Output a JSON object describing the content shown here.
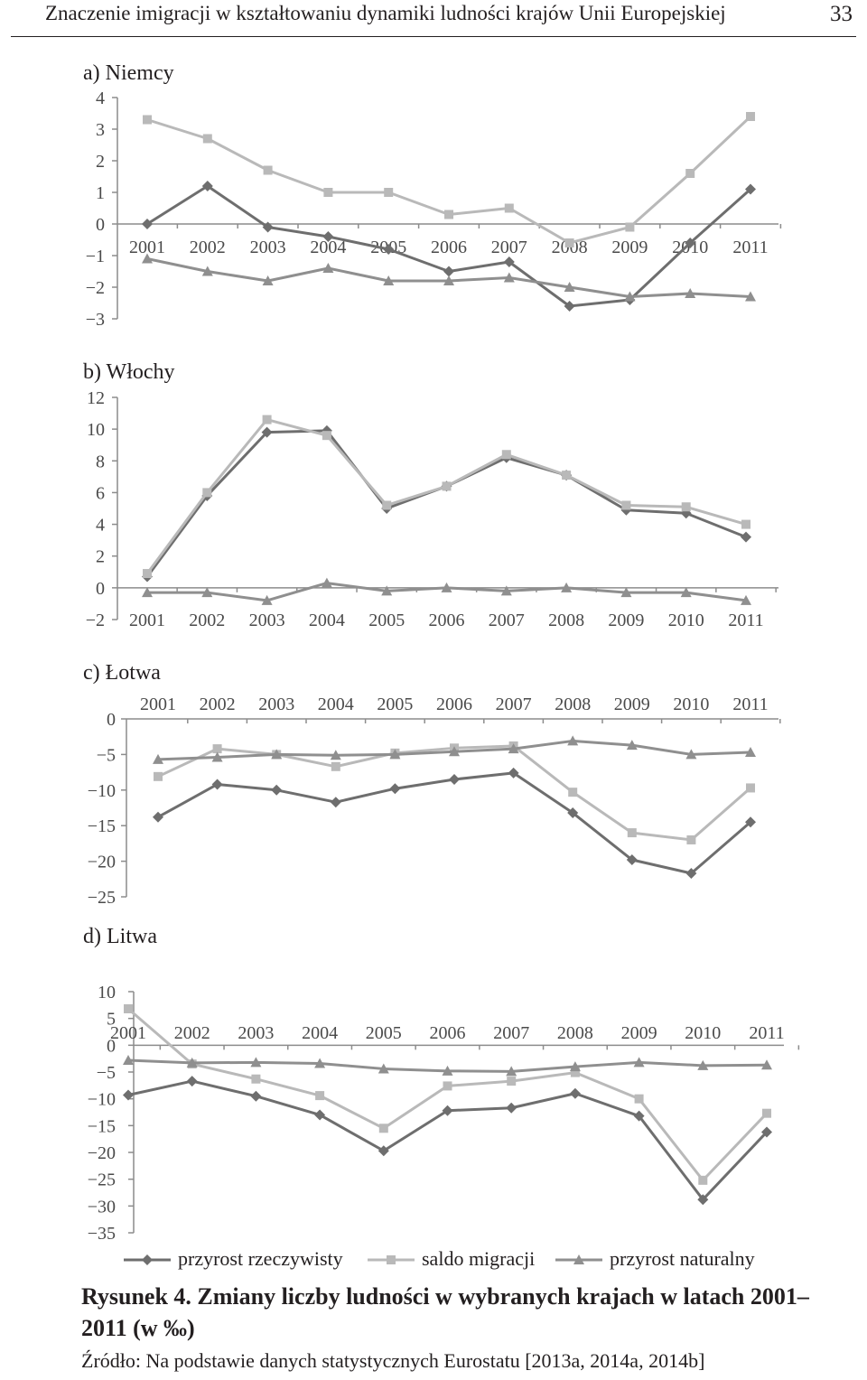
{
  "header": {
    "title": "Znaczenie imigracji w kształtowaniu dynamiki ludności krajów Unii Europejskiej",
    "page_number": "33"
  },
  "colors": {
    "przyrost_rzeczywisty": "#6e6e6e",
    "saldo_migracji": "#b9b9b9",
    "przyrost_naturalny": "#8f8f8f"
  },
  "legend": [
    {
      "name": "przyrost rzeczywisty",
      "marker": "diamond"
    },
    {
      "name": "saldo migracji",
      "marker": "square"
    },
    {
      "name": "przyrost naturalny",
      "marker": "triangle"
    }
  ],
  "caption": "Rysunek 4. Zmiany liczby ludności w wybranych krajach w latach 2001–2011 (w ‰)",
  "source": "Źródło: Na podstawie danych statystycznych Eurostatu [2013a, 2014a, 2014b]",
  "chart_data": [
    {
      "type": "line",
      "title": "a) Niemcy",
      "categories": [
        "2001",
        "2002",
        "2003",
        "2004",
        "2005",
        "2006",
        "2007",
        "2008",
        "2009",
        "2010",
        "2011"
      ],
      "ylim": [
        -3,
        4
      ],
      "yticks": [
        4,
        3,
        2,
        1,
        0,
        -1,
        -2,
        -3
      ],
      "ytick_labels": [
        "4",
        "3",
        "2",
        "1",
        "0",
        "−1",
        "−2",
        "−3"
      ],
      "series": [
        {
          "name": "przyrost rzeczywisty",
          "values": [
            0.0,
            1.2,
            -0.1,
            -0.4,
            -0.8,
            -1.5,
            -1.2,
            -2.6,
            -2.4,
            -0.6,
            1.1
          ]
        },
        {
          "name": "saldo migracji",
          "values": [
            3.3,
            2.7,
            1.7,
            1.0,
            1.0,
            0.3,
            0.5,
            -0.6,
            -0.1,
            1.6,
            3.4
          ]
        },
        {
          "name": "przyrost naturalny",
          "values": [
            -1.1,
            -1.5,
            -1.8,
            -1.4,
            -1.8,
            -1.8,
            -1.7,
            -2.0,
            -2.3,
            -2.2,
            -2.3
          ]
        }
      ]
    },
    {
      "type": "line",
      "title": "b) Włochy",
      "categories": [
        "2001",
        "2002",
        "2003",
        "2004",
        "2005",
        "2006",
        "2007",
        "2008",
        "2009",
        "2010",
        "2011"
      ],
      "ylim": [
        -2,
        12
      ],
      "yticks": [
        12,
        10,
        8,
        6,
        4,
        2,
        0,
        -2
      ],
      "ytick_labels": [
        "12",
        "10",
        "8",
        "6",
        "4",
        "2",
        "0",
        "−2"
      ],
      "series": [
        {
          "name": "przyrost rzeczywisty",
          "values": [
            0.7,
            5.8,
            9.8,
            9.9,
            5.0,
            6.4,
            8.2,
            7.1,
            4.9,
            4.7,
            3.2
          ]
        },
        {
          "name": "saldo migracji",
          "values": [
            0.9,
            6.0,
            10.6,
            9.6,
            5.2,
            6.4,
            8.4,
            7.1,
            5.2,
            5.1,
            4.0
          ]
        },
        {
          "name": "przyrost naturalny",
          "values": [
            -0.3,
            -0.3,
            -0.8,
            0.3,
            -0.2,
            0.0,
            -0.2,
            0.0,
            -0.3,
            -0.3,
            -0.8
          ]
        }
      ]
    },
    {
      "type": "line",
      "title": "c) Łotwa",
      "categories": [
        "2001",
        "2002",
        "2003",
        "2004",
        "2005",
        "2006",
        "2007",
        "2008",
        "2009",
        "2010",
        "2011"
      ],
      "ylim": [
        -25,
        0
      ],
      "yticks": [
        0,
        -5,
        -10,
        -15,
        -20,
        -25
      ],
      "ytick_labels": [
        "0",
        "−5",
        "−10",
        "−15",
        "−20",
        "−25"
      ],
      "series": [
        {
          "name": "przyrost rzeczywisty",
          "values": [
            -13.8,
            -9.2,
            -10.0,
            -11.7,
            -9.8,
            -8.5,
            -7.6,
            -13.2,
            -19.8,
            -21.7,
            -14.5
          ]
        },
        {
          "name": "saldo migracji",
          "values": [
            -8.1,
            -4.2,
            -5.0,
            -6.7,
            -4.8,
            -4.1,
            -3.8,
            -10.3,
            -16.0,
            -17.0,
            -9.7
          ]
        },
        {
          "name": "przyrost naturalny",
          "values": [
            -5.7,
            -5.4,
            -5.0,
            -5.1,
            -5.0,
            -4.6,
            -4.2,
            -3.1,
            -3.7,
            -5.0,
            -4.7
          ]
        }
      ]
    },
    {
      "type": "line",
      "title": "d) Litwa",
      "categories": [
        "2001",
        "2002",
        "2003",
        "2004",
        "2005",
        "2006",
        "2007",
        "2008",
        "2009",
        "2010",
        "2011"
      ],
      "ylim": [
        -35,
        10
      ],
      "yticks": [
        10,
        5,
        0,
        -5,
        -10,
        -15,
        -20,
        -25,
        -30,
        -35
      ],
      "ytick_labels": [
        "10",
        "5",
        "0",
        "−5",
        "−10",
        "−15",
        "−20",
        "−25",
        "−30",
        "−35"
      ],
      "series": [
        {
          "name": "przyrost rzeczywisty",
          "values": [
            -9.3,
            -6.7,
            -9.5,
            -13.0,
            -19.7,
            -12.2,
            -11.7,
            -9.0,
            -13.2,
            -28.8,
            -16.2
          ]
        },
        {
          "name": "saldo migracji",
          "values": [
            6.8,
            -3.5,
            -6.3,
            -9.4,
            -15.5,
            -7.6,
            -6.7,
            -5.1,
            -10.0,
            -25.2,
            -12.7
          ]
        },
        {
          "name": "przyrost naturalny",
          "values": [
            -2.8,
            -3.3,
            -3.2,
            -3.4,
            -4.4,
            -4.8,
            -4.9,
            -4.0,
            -3.2,
            -3.8,
            -3.7
          ]
        }
      ]
    }
  ]
}
